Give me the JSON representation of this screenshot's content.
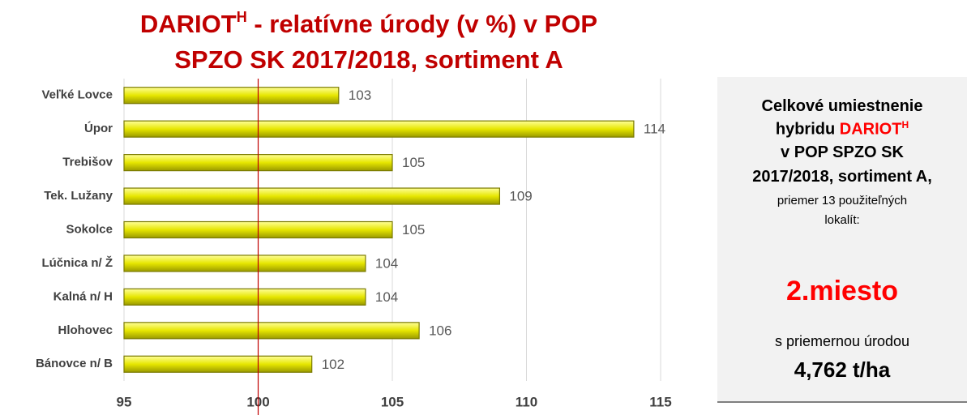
{
  "chart_data": {
    "type": "bar",
    "title_parts": [
      "DARIOT",
      "H",
      " - relatívne úrody (v %) v POP",
      "SPZO SK 2017/2018, sortiment A"
    ],
    "categories": [
      "Veľké Lovce",
      "Úpor",
      "Trebišov",
      "Tek. Lužany",
      "Sokolce",
      "Lúčnica n/ Ž",
      "Kalná n/ H",
      "Hlohovec",
      "Bánovce n/ B"
    ],
    "values": [
      103,
      114,
      105,
      109,
      105,
      104,
      104,
      106,
      102
    ],
    "color": "#e6e600",
    "xlim": [
      95,
      115
    ],
    "xticks": [
      95,
      100,
      105,
      110,
      115
    ],
    "grid": true,
    "reference_value": 100,
    "reference_color": "#c00000"
  },
  "panel": {
    "line1": "Celkové umiestnenie",
    "line2_prefix": "hybridu ",
    "line2_name": "DARIOT",
    "line2_sup": "H",
    "line3": "v POP SPZO SK",
    "line4": "2017/2018, sortiment A,",
    "line5": "priemer 13 použiteľných",
    "line6": "lokalít:",
    "rank": "2.miesto",
    "line7": "s priemernou úrodou",
    "yield": "4,762 t/ha"
  }
}
